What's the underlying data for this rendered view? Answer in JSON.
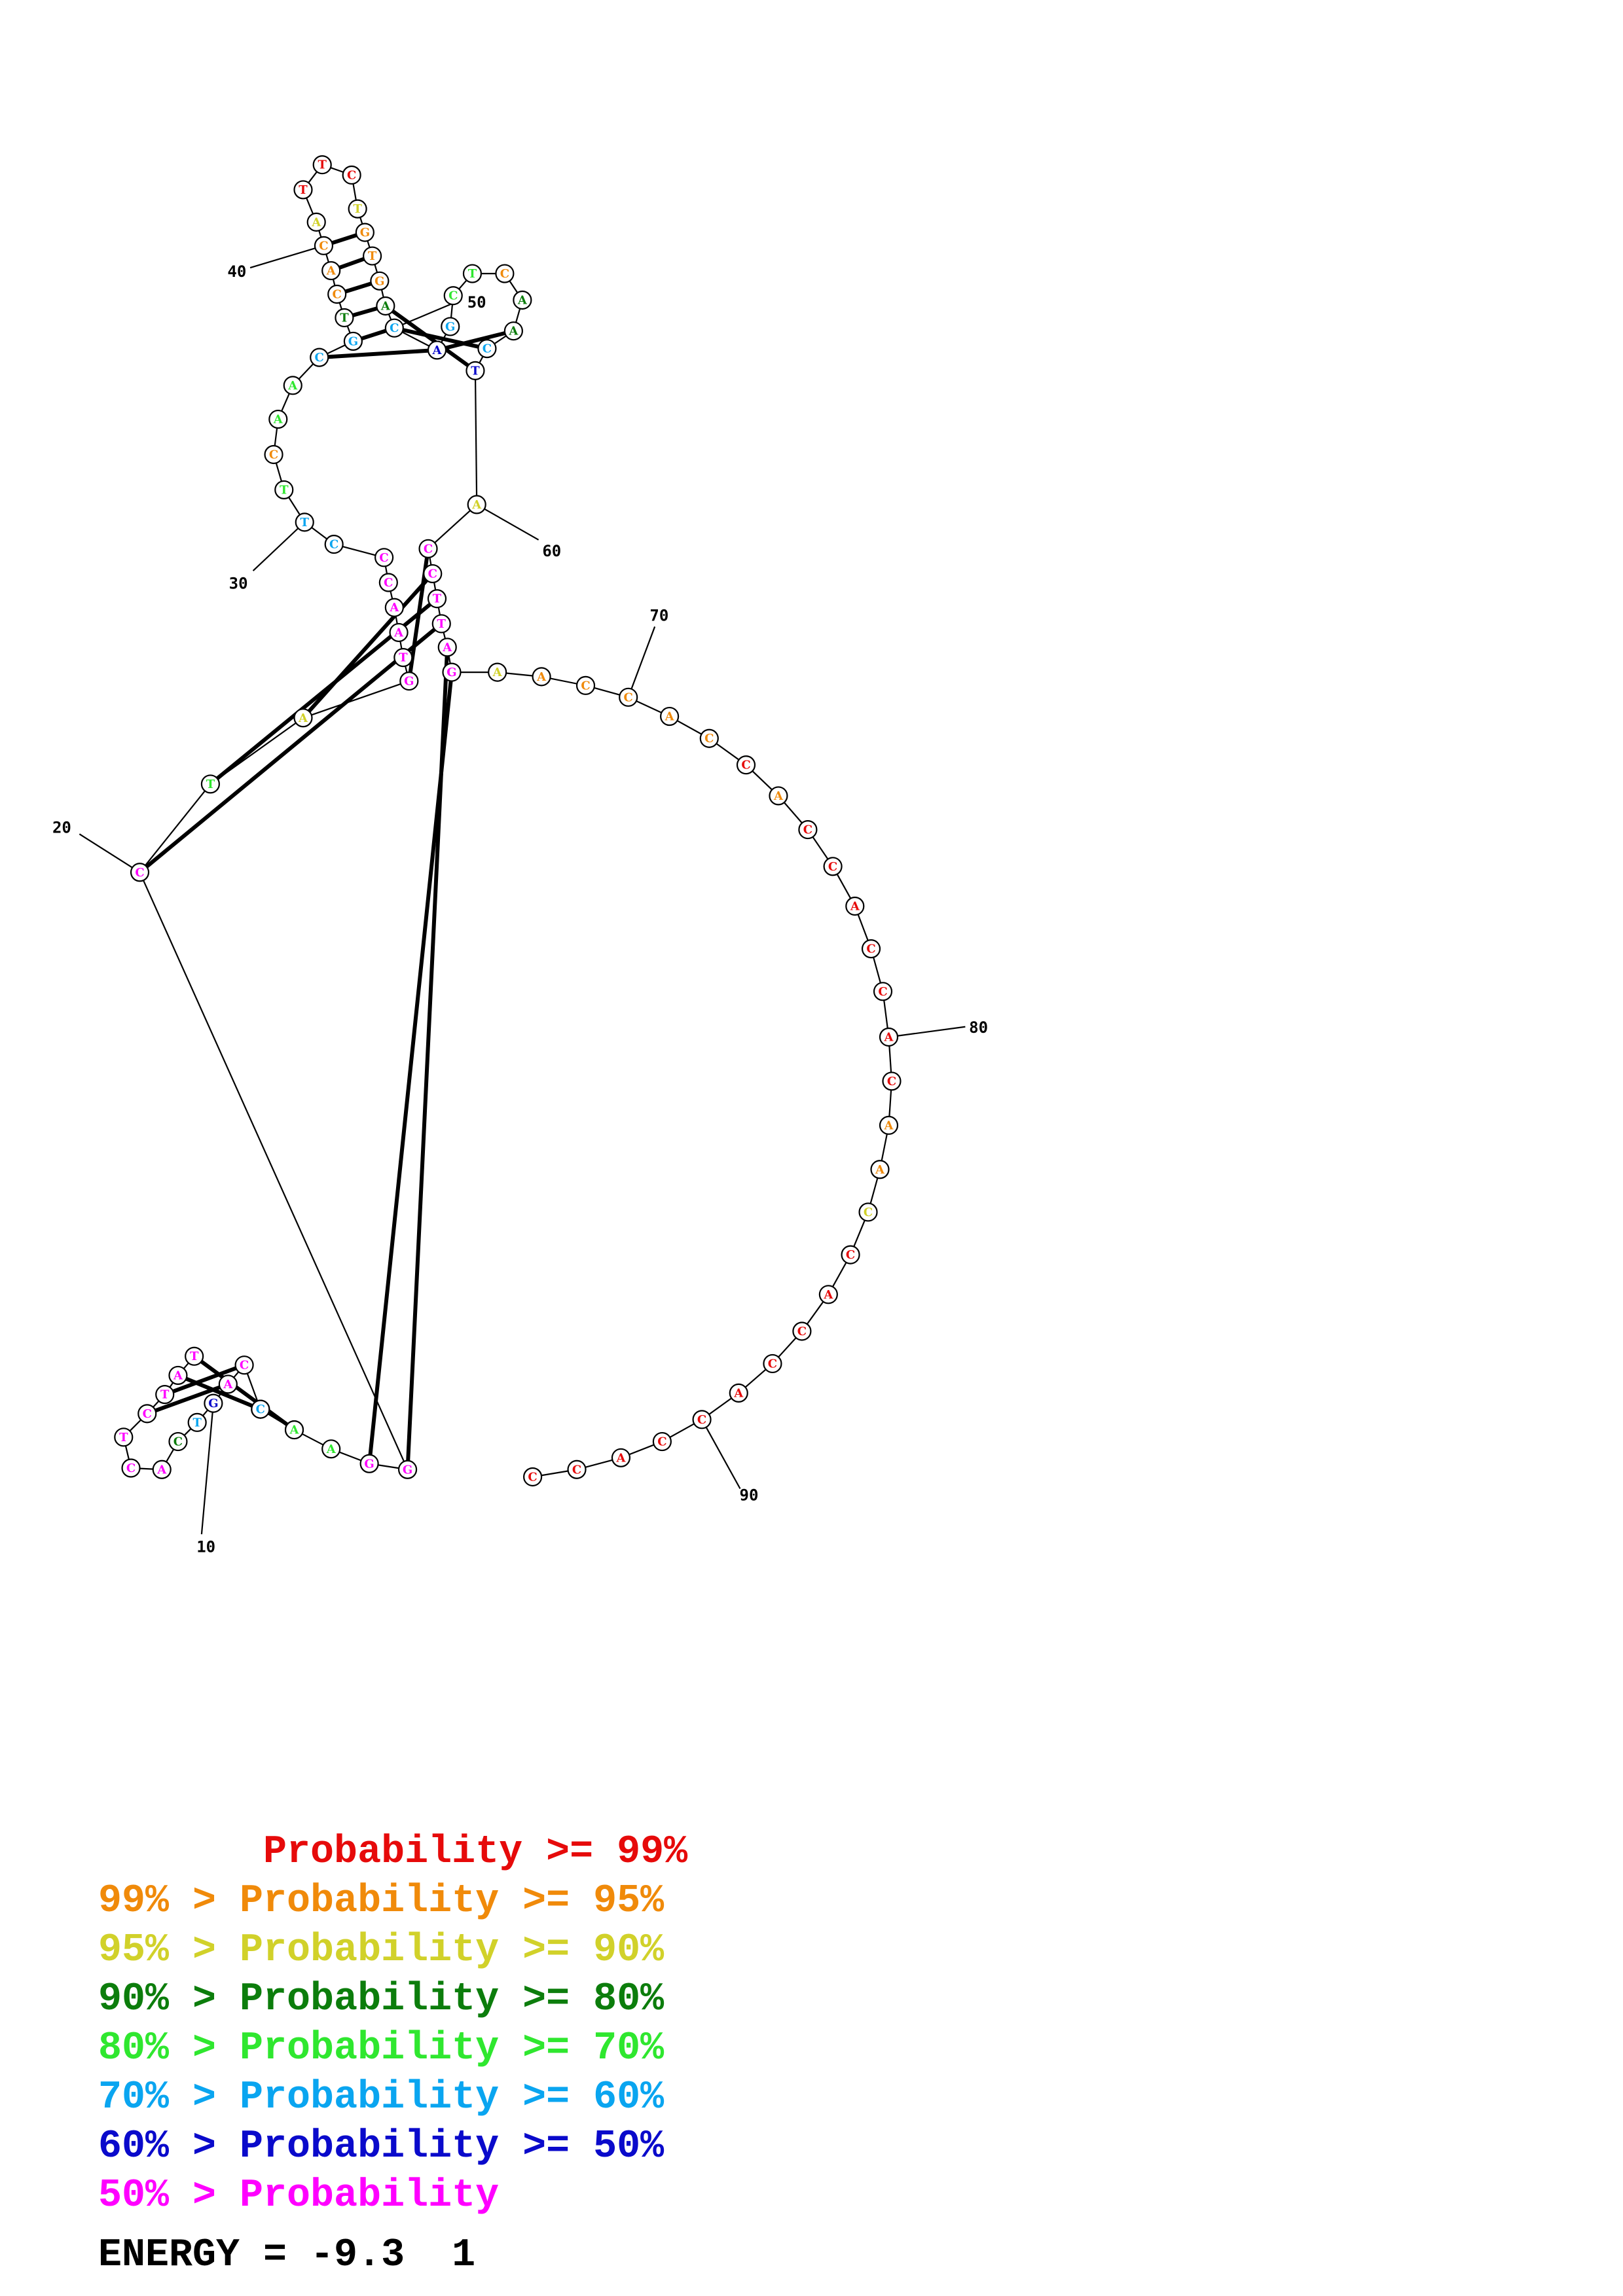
{
  "structure": {
    "nucleotides": [
      {
        "i": 1,
        "base": "T",
        "color": "#ff00ff"
      },
      {
        "i": 2,
        "base": "A",
        "color": "#ff00ff"
      },
      {
        "i": 3,
        "base": "T",
        "color": "#ff00ff"
      },
      {
        "i": 4,
        "base": "C",
        "color": "#ff00ff"
      },
      {
        "i": 5,
        "base": "T",
        "color": "#ff00ff"
      },
      {
        "i": 6,
        "base": "C",
        "color": "#ff00ff"
      },
      {
        "i": 7,
        "base": "A",
        "color": "#ff00ff"
      },
      {
        "i": 8,
        "base": "C",
        "color": "#0c7d0c"
      },
      {
        "i": 9,
        "base": "T",
        "color": "#0aa5f0"
      },
      {
        "i": 10,
        "base": "G",
        "color": "#0a0acb"
      },
      {
        "i": 11,
        "base": "A",
        "color": "#ff00ff"
      },
      {
        "i": 12,
        "base": "C",
        "color": "#ff00ff"
      },
      {
        "i": 13,
        "base": "T",
        "color": "#ff00ff"
      },
      {
        "i": 14,
        "base": "A",
        "color": "#ff00ff"
      },
      {
        "i": 15,
        "base": "C",
        "color": "#0aa5f0"
      },
      {
        "i": 16,
        "base": "A",
        "color": "#2fe72f"
      },
      {
        "i": 17,
        "base": "A",
        "color": "#2fe72f"
      },
      {
        "i": 18,
        "base": "G",
        "color": "#ff00ff"
      },
      {
        "i": 19,
        "base": "G",
        "color": "#ff00ff"
      },
      {
        "i": 20,
        "base": "C",
        "color": "#ff00ff"
      },
      {
        "i": 21,
        "base": "T",
        "color": "#2fe72f"
      },
      {
        "i": 22,
        "base": "A",
        "color": "#d1d12a"
      },
      {
        "i": 23,
        "base": "G",
        "color": "#ff00ff"
      },
      {
        "i": 24,
        "base": "T",
        "color": "#ff00ff"
      },
      {
        "i": 25,
        "base": "A",
        "color": "#ff00ff"
      },
      {
        "i": 26,
        "base": "A",
        "color": "#ff00ff"
      },
      {
        "i": 27,
        "base": "C",
        "color": "#ff00ff"
      },
      {
        "i": 28,
        "base": "C",
        "color": "#ff00ff"
      },
      {
        "i": 29,
        "base": "C",
        "color": "#0aa5f0"
      },
      {
        "i": 30,
        "base": "T",
        "color": "#0aa5f0"
      },
      {
        "i": 31,
        "base": "T",
        "color": "#2fe72f"
      },
      {
        "i": 32,
        "base": "C",
        "color": "#f08a0a"
      },
      {
        "i": 33,
        "base": "A",
        "color": "#2fe72f"
      },
      {
        "i": 34,
        "base": "A",
        "color": "#2fe72f"
      },
      {
        "i": 35,
        "base": "C",
        "color": "#0aa5f0"
      },
      {
        "i": 36,
        "base": "G",
        "color": "#0aa5f0"
      },
      {
        "i": 37,
        "base": "T",
        "color": "#0c7d0c"
      },
      {
        "i": 38,
        "base": "C",
        "color": "#f08a0a"
      },
      {
        "i": 39,
        "base": "A",
        "color": "#f08a0a"
      },
      {
        "i": 40,
        "base": "C",
        "color": "#f08a0a"
      },
      {
        "i": 41,
        "base": "A",
        "color": "#d1d12a"
      },
      {
        "i": 42,
        "base": "T",
        "color": "#e60a0a"
      },
      {
        "i": 43,
        "base": "T",
        "color": "#e60a0a"
      },
      {
        "i": 44,
        "base": "C",
        "color": "#e60a0a"
      },
      {
        "i": 45,
        "base": "T",
        "color": "#d1d12a"
      },
      {
        "i": 46,
        "base": "G",
        "color": "#f08a0a"
      },
      {
        "i": 47,
        "base": "T",
        "color": "#f08a0a"
      },
      {
        "i": 48,
        "base": "G",
        "color": "#f08a0a"
      },
      {
        "i": 49,
        "base": "A",
        "color": "#0c7d0c"
      },
      {
        "i": 50,
        "base": "C",
        "color": "#0aa5f0"
      },
      {
        "i": 51,
        "base": "A",
        "color": "#0a0acb"
      },
      {
        "i": 52,
        "base": "G",
        "color": "#0aa5f0"
      },
      {
        "i": 53,
        "base": "C",
        "color": "#2fe72f"
      },
      {
        "i": 54,
        "base": "T",
        "color": "#2fe72f"
      },
      {
        "i": 55,
        "base": "C",
        "color": "#f08a0a"
      },
      {
        "i": 56,
        "base": "A",
        "color": "#0c7d0c"
      },
      {
        "i": 57,
        "base": "A",
        "color": "#0c7d0c"
      },
      {
        "i": 58,
        "base": "C",
        "color": "#0aa5f0"
      },
      {
        "i": 59,
        "base": "T",
        "color": "#0a0acb"
      },
      {
        "i": 60,
        "base": "A",
        "color": "#d1d12a"
      },
      {
        "i": 61,
        "base": "C",
        "color": "#ff00ff"
      },
      {
        "i": 62,
        "base": "C",
        "color": "#ff00ff"
      },
      {
        "i": 63,
        "base": "T",
        "color": "#ff00ff"
      },
      {
        "i": 64,
        "base": "T",
        "color": "#ff00ff"
      },
      {
        "i": 65,
        "base": "A",
        "color": "#ff00ff"
      },
      {
        "i": 66,
        "base": "G",
        "color": "#ff00ff"
      },
      {
        "i": 67,
        "base": "A",
        "color": "#d1d12a"
      },
      {
        "i": 68,
        "base": "A",
        "color": "#f08a0a"
      },
      {
        "i": 69,
        "base": "C",
        "color": "#f08a0a"
      },
      {
        "i": 70,
        "base": "C",
        "color": "#f08a0a"
      },
      {
        "i": 71,
        "base": "A",
        "color": "#f08a0a"
      },
      {
        "i": 72,
        "base": "C",
        "color": "#f08a0a"
      },
      {
        "i": 73,
        "base": "C",
        "color": "#e60a0a"
      },
      {
        "i": 74,
        "base": "A",
        "color": "#f08a0a"
      },
      {
        "i": 75,
        "base": "C",
        "color": "#e60a0a"
      },
      {
        "i": 76,
        "base": "C",
        "color": "#e60a0a"
      },
      {
        "i": 77,
        "base": "A",
        "color": "#e60a0a"
      },
      {
        "i": 78,
        "base": "C",
        "color": "#e60a0a"
      },
      {
        "i": 79,
        "base": "C",
        "color": "#e60a0a"
      },
      {
        "i": 80,
        "base": "A",
        "color": "#e60a0a"
      },
      {
        "i": 81,
        "base": "C",
        "color": "#e60a0a"
      },
      {
        "i": 82,
        "base": "A",
        "color": "#f08a0a"
      },
      {
        "i": 83,
        "base": "A",
        "color": "#f08a0a"
      },
      {
        "i": 84,
        "base": "C",
        "color": "#d1d12a"
      },
      {
        "i": 85,
        "base": "C",
        "color": "#e60a0a"
      },
      {
        "i": 86,
        "base": "A",
        "color": "#e60a0a"
      },
      {
        "i": 87,
        "base": "C",
        "color": "#e60a0a"
      },
      {
        "i": 88,
        "base": "C",
        "color": "#e60a0a"
      },
      {
        "i": 89,
        "base": "A",
        "color": "#e60a0a"
      },
      {
        "i": 90,
        "base": "C",
        "color": "#e60a0a"
      },
      {
        "i": 91,
        "base": "C",
        "color": "#e60a0a"
      },
      {
        "i": 92,
        "base": "A",
        "color": "#e60a0a"
      },
      {
        "i": 93,
        "base": "C",
        "color": "#e60a0a"
      },
      {
        "i": 94,
        "base": "C",
        "color": "#e60a0a"
      }
    ],
    "pairs": [
      [
        1,
        14
      ],
      [
        2,
        13
      ],
      [
        3,
        12
      ],
      [
        4,
        11
      ],
      [
        18,
        66
      ],
      [
        19,
        65
      ],
      [
        20,
        64
      ],
      [
        21,
        63
      ],
      [
        22,
        62
      ],
      [
        23,
        61
      ],
      [
        35,
        51
      ],
      [
        36,
        50
      ],
      [
        37,
        49
      ],
      [
        38,
        48
      ],
      [
        39,
        47
      ],
      [
        40,
        46
      ],
      [
        49,
        59
      ],
      [
        50,
        58
      ],
      [
        51,
        57
      ]
    ],
    "index_labels": [
      {
        "i": 10,
        "text": "10"
      },
      {
        "i": 20,
        "text": "20"
      },
      {
        "i": 30,
        "text": "30"
      },
      {
        "i": 40,
        "text": "40"
      },
      {
        "i": 50,
        "text": "50"
      },
      {
        "i": 60,
        "text": "60"
      },
      {
        "i": 70,
        "text": "70"
      },
      {
        "i": 80,
        "text": "80"
      },
      {
        "i": 90,
        "text": "90"
      }
    ]
  },
  "legend": [
    {
      "text": "       Probability >= 99%",
      "color": "#e60a0a"
    },
    {
      "text": "99% > Probability >= 95%",
      "color": "#f08a0a"
    },
    {
      "text": "95% > Probability >= 90%",
      "color": "#d1d12a"
    },
    {
      "text": "90% > Probability >= 80%",
      "color": "#0c7d0c"
    },
    {
      "text": "80% > Probability >= 70%",
      "color": "#2fe72f"
    },
    {
      "text": "70% > Probability >= 60%",
      "color": "#0aa5f0"
    },
    {
      "text": "60% > Probability >= 50%",
      "color": "#0a0acb"
    },
    {
      "text": "50% > Probability",
      "color": "#ff00ff"
    }
  ],
  "energy_text": "ENERGY = -9.3  1"
}
